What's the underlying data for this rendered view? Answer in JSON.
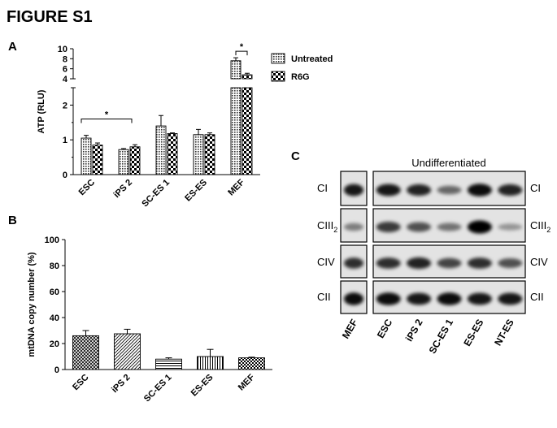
{
  "figure": {
    "title": "FIGURE S1",
    "panels": {
      "a": "A",
      "b": "B",
      "c": "C"
    }
  },
  "chart_data": [
    {
      "panel": "A",
      "type": "bar",
      "ylabel": "ATP (RLU)",
      "axis_break": {
        "lower": [
          0,
          2.5
        ],
        "upper": [
          4,
          10
        ]
      },
      "yticks": [
        0,
        1,
        2,
        4,
        6,
        8,
        10
      ],
      "categories": [
        "ESC",
        "iPS 2",
        "SC-ES 1",
        "ES-ES",
        "MEF"
      ],
      "series": [
        {
          "name": "Untreated",
          "values": [
            1.05,
            0.72,
            1.4,
            1.15,
            7.6
          ],
          "errors": [
            0.08,
            0.03,
            0.3,
            0.15,
            0.6
          ]
        },
        {
          "name": "R6G",
          "values": [
            0.85,
            0.8,
            1.18,
            1.15,
            4.8
          ],
          "errors": [
            0.06,
            0.06,
            0.02,
            0.05,
            0.3
          ]
        }
      ],
      "significance": [
        {
          "from": "ESC",
          "to": "iPS 2",
          "series": "Untreated",
          "label": "*"
        },
        {
          "category": "MEF",
          "label": "*"
        }
      ],
      "legend_position": "right"
    },
    {
      "panel": "B",
      "type": "bar",
      "ylabel": "mtDNA copy number (%)",
      "ylim": [
        0,
        100
      ],
      "yticks": [
        0,
        20,
        40,
        60,
        80,
        100
      ],
      "categories": [
        "ESC",
        "iPS 2",
        "SC-ES 1",
        "ES-ES",
        "MEF"
      ],
      "values": [
        26,
        27.5,
        8,
        10,
        9
      ],
      "errors": [
        4,
        3.5,
        1,
        5.5,
        0.5
      ]
    }
  ],
  "blot": {
    "header": "Undifferentiated",
    "rows": [
      {
        "left": "CI",
        "right": "CI"
      },
      {
        "left": "CIII",
        "left_sub": "2",
        "right": "CIII",
        "right_sub": "2"
      },
      {
        "left": "CIV",
        "right": "CIV"
      },
      {
        "left": "CII",
        "right": "CII"
      }
    ],
    "lanes_left": [
      "MEF"
    ],
    "lanes_right": [
      "ESC",
      "iPS 2",
      "SC-ES 1",
      "ES-ES",
      "NT-ES"
    ]
  }
}
